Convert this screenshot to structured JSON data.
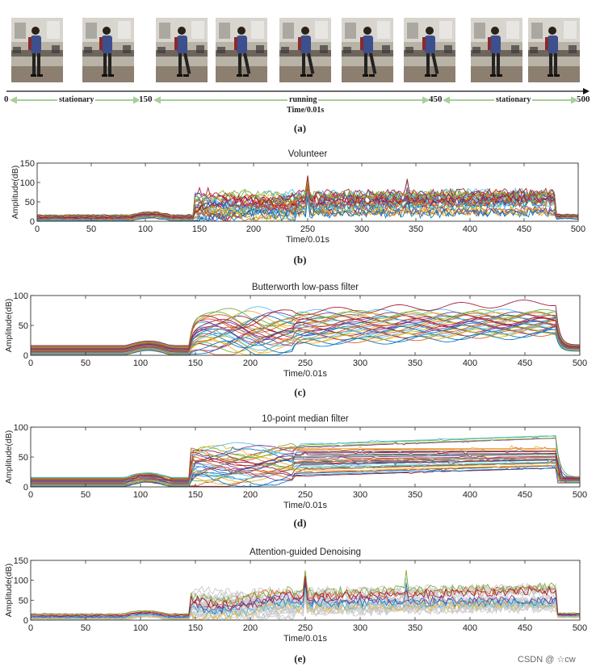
{
  "timeline": {
    "phases": [
      {
        "label": "stationary",
        "from": 0,
        "to": 150
      },
      {
        "label": "running",
        "from": 150,
        "to": 450
      },
      {
        "label": "stationary",
        "from": 450,
        "to": 500
      }
    ],
    "ticks": [
      "0",
      "150",
      "450",
      "500"
    ],
    "axis_label": "Time/0.01s",
    "caption": "(a)",
    "frames": 9
  },
  "chart_data": [
    {
      "type": "line",
      "id": "b",
      "title": "Volunteer",
      "xlabel": "Time/0.01s",
      "ylabel": "Amplitude(dB)",
      "xlim": [
        0,
        500
      ],
      "ylim": [
        0,
        150
      ],
      "xticks": [
        0,
        50,
        100,
        150,
        200,
        250,
        300,
        350,
        400,
        450,
        500
      ],
      "yticks": [
        0,
        50,
        100,
        150
      ],
      "series_count": 30,
      "style": "raw",
      "caption": "(b)"
    },
    {
      "type": "line",
      "id": "c",
      "title": "Butterworth low-pass filter",
      "xlabel": "Time/0.01s",
      "ylabel": "Amplitude(dB)",
      "xlim": [
        0,
        500
      ],
      "ylim": [
        0,
        100
      ],
      "xticks": [
        0,
        50,
        100,
        150,
        200,
        250,
        300,
        350,
        400,
        450,
        500
      ],
      "yticks": [
        0,
        50,
        100
      ],
      "series_count": 30,
      "style": "smooth",
      "caption": "(c)"
    },
    {
      "type": "line",
      "id": "d",
      "title": "10-point median filter",
      "xlabel": "Time/0.01s",
      "ylabel": "Amplitude(dB)",
      "xlim": [
        0,
        500
      ],
      "ylim": [
        0,
        100
      ],
      "xticks": [
        0,
        50,
        100,
        150,
        200,
        250,
        300,
        350,
        400,
        450,
        500
      ],
      "yticks": [
        0,
        50,
        100
      ],
      "series_count": 30,
      "style": "median",
      "caption": "(d)"
    },
    {
      "type": "line",
      "id": "e",
      "title": "Attention-guided Denoising",
      "xlabel": "Time/0.01s",
      "ylabel": "Amplitude(dB)",
      "xlim": [
        0,
        500
      ],
      "ylim": [
        0,
        150
      ],
      "xticks": [
        0,
        50,
        100,
        150,
        200,
        250,
        300,
        350,
        400,
        450,
        500
      ],
      "yticks": [
        0,
        50,
        100,
        150
      ],
      "series_count": 30,
      "style": "attention",
      "caption": "(e)"
    }
  ],
  "watermark": "CSDN @ ☆cw",
  "colors": {
    "series": [
      "#0072bd",
      "#d95319",
      "#edb120",
      "#7e2f8e",
      "#77ac30",
      "#4dbeee",
      "#a2142f"
    ],
    "gray": "#c8c8c8",
    "axis": "#333333"
  }
}
